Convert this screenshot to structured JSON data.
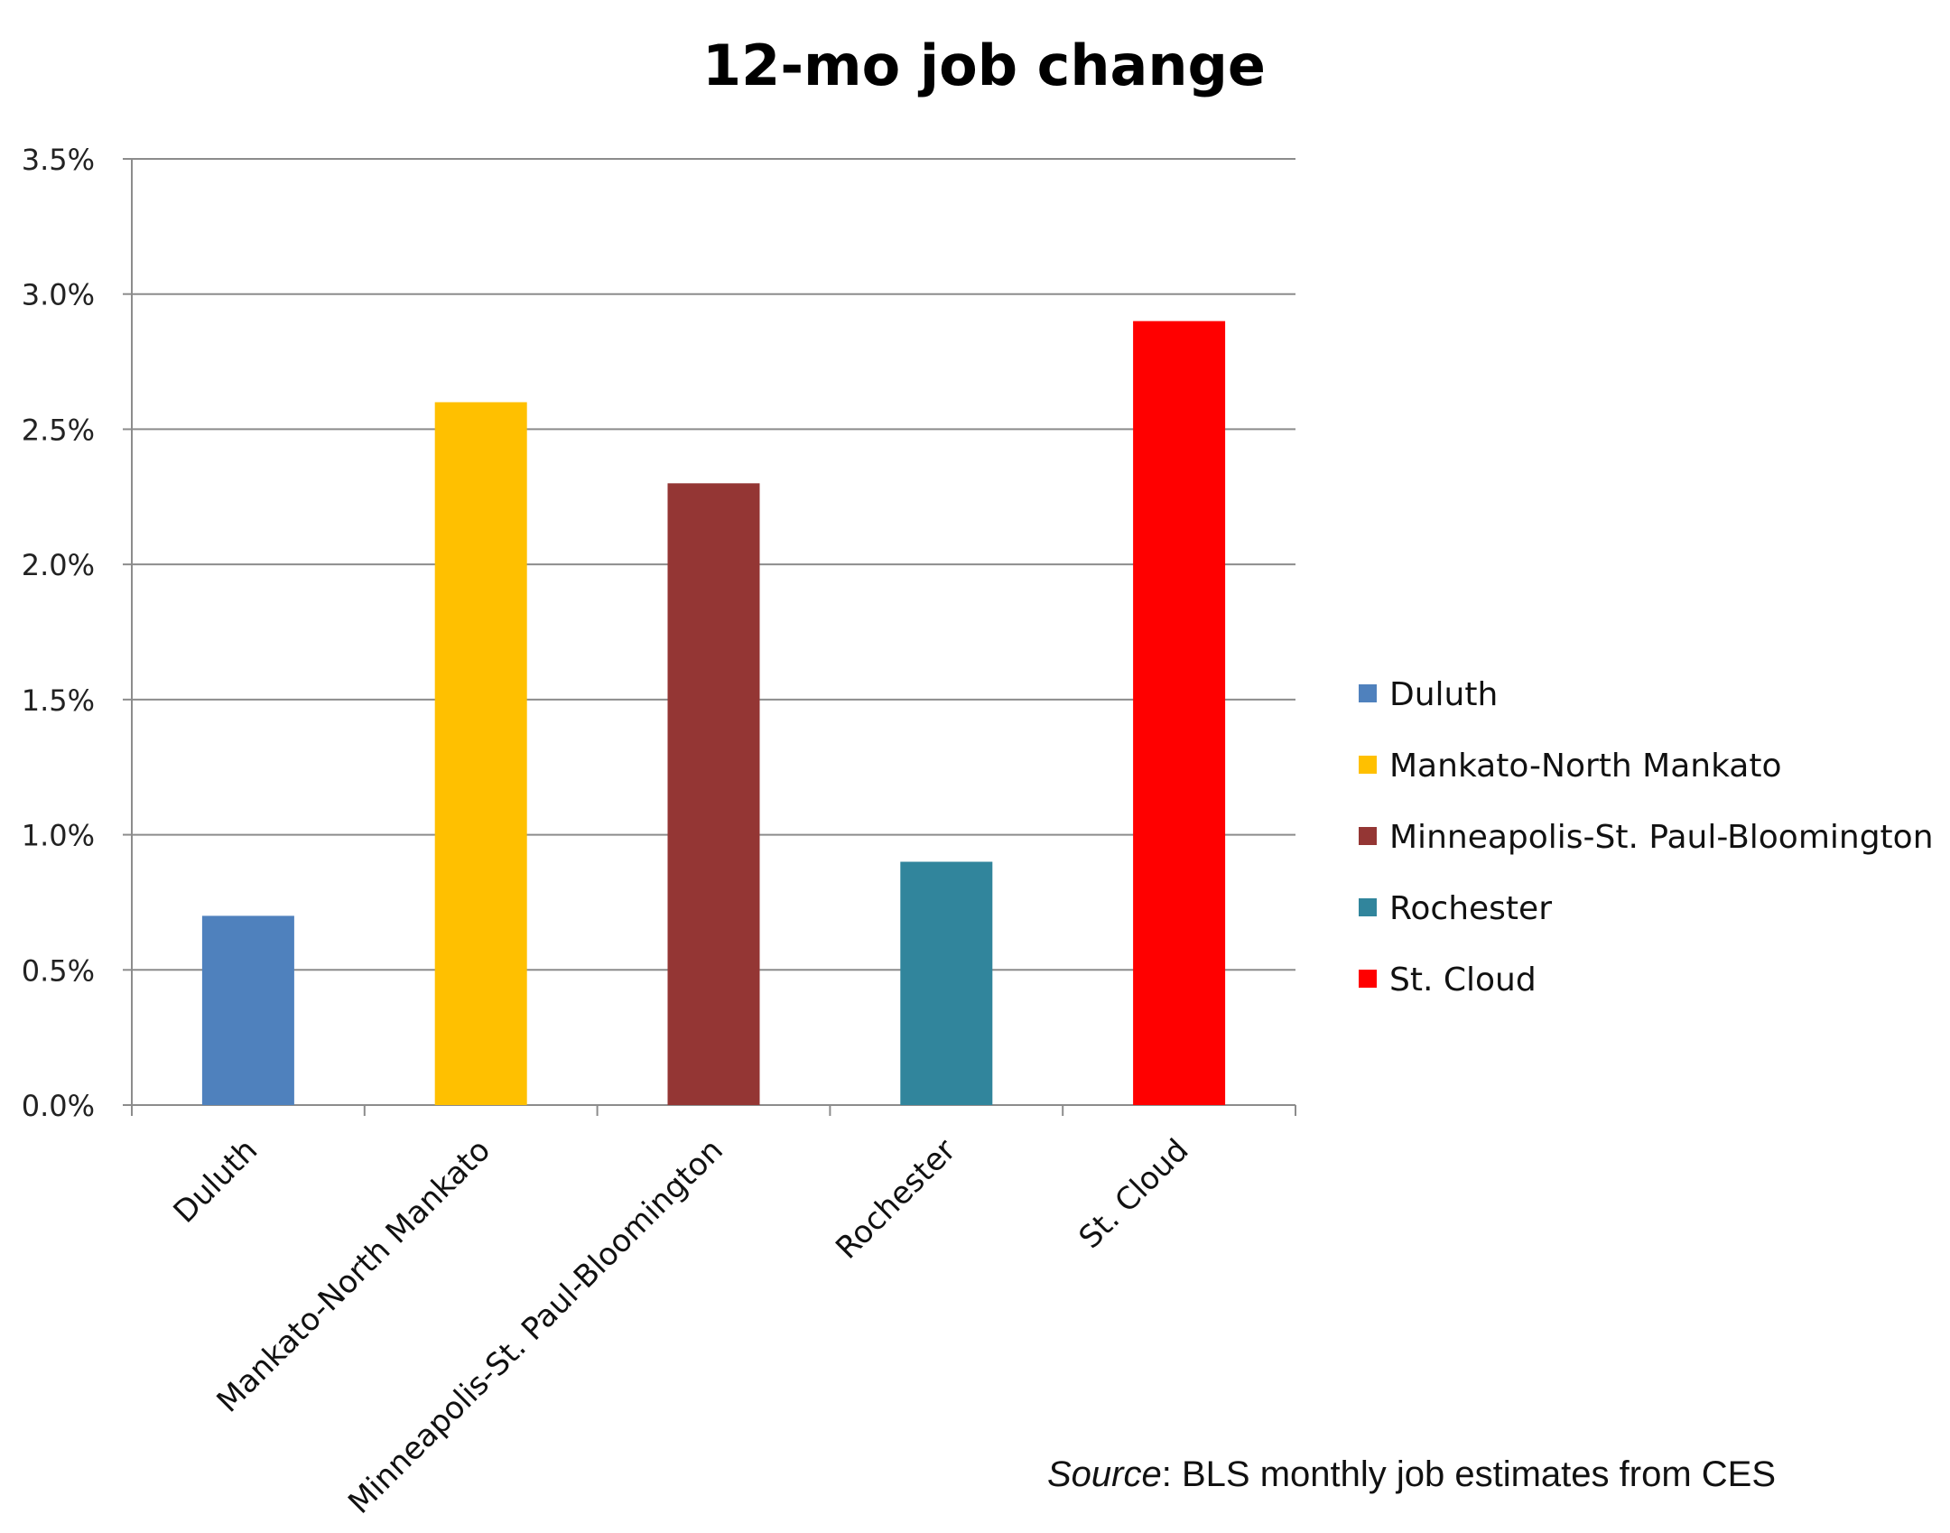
{
  "chart_data": {
    "type": "bar",
    "title": "12-mo job change",
    "categories": [
      "Duluth",
      "Mankato-North Mankato",
      "Minneapolis-St. Paul-Bloomington",
      "Rochester",
      "St. Cloud"
    ],
    "values": [
      0.7,
      2.6,
      2.3,
      0.9,
      2.9
    ],
    "unit": "%",
    "colors": [
      "#4f81bd",
      "#ffc000",
      "#943634",
      "#31859c",
      "#ff0000"
    ],
    "ylim": [
      0,
      3.5
    ],
    "yticks": [
      0.0,
      0.5,
      1.0,
      1.5,
      2.0,
      2.5,
      3.0,
      3.5
    ],
    "ytick_labels": [
      "0.0%",
      "0.5%",
      "1.0%",
      "1.5%",
      "2.0%",
      "2.5%",
      "3.0%",
      "3.5%"
    ],
    "xlabel": "",
    "ylabel": "",
    "grid": true,
    "legend": {
      "placement": "right",
      "entries": [
        "Duluth",
        "Mankato-North Mankato",
        "Minneapolis-St. Paul-Bloomington",
        "Rochester",
        "St. Cloud"
      ]
    }
  },
  "source": {
    "label": "Source",
    "text": ": BLS monthly job estimates from CES"
  }
}
